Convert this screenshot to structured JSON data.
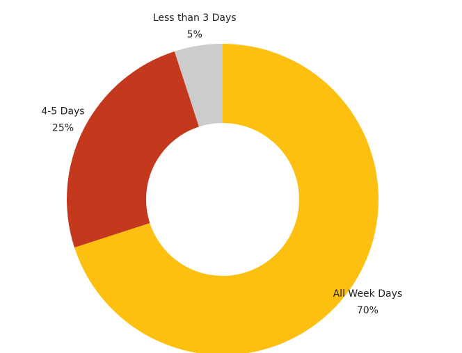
{
  "chart_data": {
    "type": "donut",
    "categories": [
      "All Week Days",
      "4-5 Days",
      "Less than 3 Days"
    ],
    "values": [
      70,
      25,
      5
    ],
    "value_labels": [
      "70%",
      "25%",
      "5%"
    ],
    "colors": [
      "#fdc010",
      "#c4391d",
      "#cccccc"
    ]
  }
}
